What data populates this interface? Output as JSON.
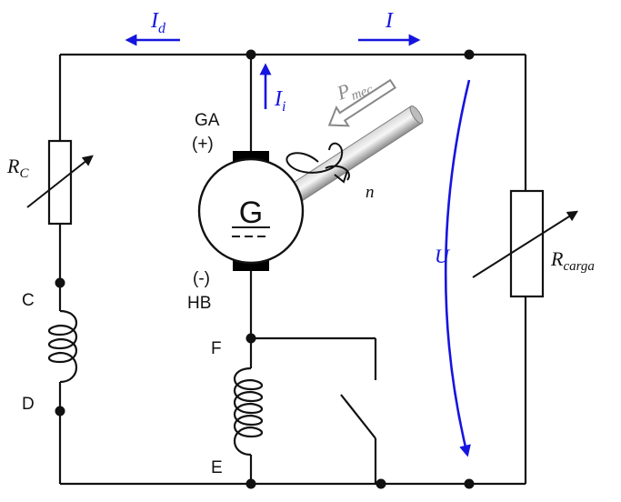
{
  "diagram": {
    "generator_letter": "G",
    "terminal_top": "GA",
    "terminal_top_polarity": "(+)",
    "terminal_bottom_polarity": "(-)",
    "terminal_bottom": "HB",
    "speed_label": "n",
    "mech_power": {
      "main": "P",
      "sub": "mec"
    },
    "current_d": {
      "main": "I",
      "sub": "d"
    },
    "current_i": {
      "main": "I",
      "sub": "i"
    },
    "current_load": "I",
    "voltage": "U",
    "resistor_c": {
      "main": "R",
      "sub": "C"
    },
    "resistor_load": {
      "main": "R",
      "sub": "carga"
    },
    "coil_left_top": "C",
    "coil_left_bottom": "D",
    "coil_series_top": "F",
    "coil_series_bottom": "E",
    "colors": {
      "wire": "#111111",
      "accent_blue": "#1515e0",
      "shaft_grey": "#8a8a8a"
    }
  }
}
